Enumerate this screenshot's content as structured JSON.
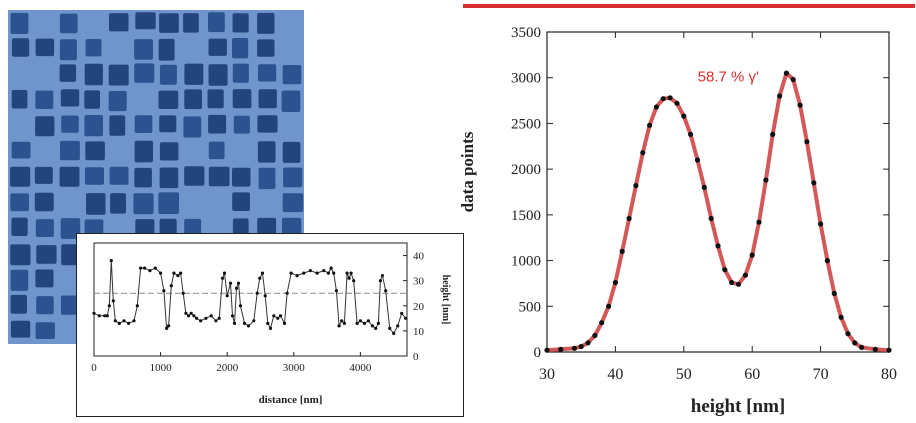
{
  "afm_image": {
    "icon": "afm-microstructure-image"
  },
  "chart_data": [
    {
      "type": "line",
      "xlabel": "distance [nm]",
      "ylabel": "height [nm]",
      "xlim": [
        0,
        4700
      ],
      "ylim": [
        0,
        45
      ],
      "x_ticks": [
        0,
        1000,
        2000,
        3000,
        4000
      ],
      "y_ticks": [
        0,
        10,
        20,
        30,
        40
      ],
      "reference_line": 25,
      "series": [
        {
          "x": [
            0,
            80,
            160,
            200,
            230,
            260,
            290,
            320,
            380,
            450,
            520,
            600,
            650,
            700,
            760,
            840,
            920,
            1000,
            1050,
            1090,
            1120,
            1160,
            1200,
            1260,
            1300,
            1340,
            1380,
            1420,
            1460,
            1500,
            1540,
            1600,
            1680,
            1760,
            1830,
            1880,
            1930,
            1960,
            2000,
            2050,
            2080,
            2110,
            2140,
            2170,
            2200,
            2260,
            2320,
            2400,
            2450,
            2490,
            2530,
            2570,
            2610,
            2650,
            2700,
            2760,
            2800,
            2860,
            2900,
            2960,
            3050,
            3150,
            3250,
            3350,
            3450,
            3520,
            3560,
            3600,
            3640,
            3680,
            3720,
            3760,
            3800,
            3830,
            3860,
            3900,
            3950,
            4000,
            4060,
            4120,
            4180,
            4230,
            4270,
            4300,
            4330,
            4380,
            4440,
            4500,
            4560,
            4620,
            4680
          ],
          "y": [
            17,
            16,
            16,
            16,
            20,
            38,
            22,
            14,
            13,
            14,
            13,
            14,
            20,
            35,
            35,
            34,
            35,
            33,
            26,
            11,
            12,
            28,
            33,
            32,
            33,
            25,
            17,
            16,
            17,
            16,
            15,
            14,
            15,
            16,
            14,
            15,
            31,
            33,
            24,
            29,
            16,
            13,
            27,
            29,
            20,
            13,
            12,
            14,
            25,
            31,
            33,
            24,
            13,
            11,
            16,
            15,
            16,
            13,
            25,
            33,
            32,
            33,
            34,
            33,
            34,
            33,
            35,
            33,
            26,
            12,
            14,
            13,
            33,
            31,
            33,
            30,
            13,
            14,
            13,
            14,
            12,
            11,
            13,
            30,
            32,
            26,
            11,
            9,
            12,
            17,
            15
          ]
        }
      ]
    },
    {
      "type": "scatter",
      "xlabel": "height [nm]",
      "ylabel": "data points",
      "xlim": [
        30,
        80
      ],
      "ylim": [
        0,
        3500
      ],
      "x_ticks": [
        30,
        40,
        50,
        60,
        70,
        80
      ],
      "y_ticks": [
        0,
        500,
        1000,
        1500,
        2000,
        2500,
        3000,
        3500
      ],
      "annotation": "58.7 % γ'",
      "colors": {
        "fit": "#cc3b3b",
        "points": "#111111",
        "accent_bar": "#d9302f",
        "annotation": "#d9302f"
      },
      "series": [
        {
          "x": [
            30,
            32,
            34,
            35,
            36,
            37,
            38,
            39,
            40,
            41,
            42,
            43,
            44,
            45,
            46,
            47,
            48,
            49,
            50,
            51,
            52,
            53,
            54,
            55,
            56,
            57,
            58,
            59,
            60,
            61,
            62,
            63,
            64,
            65,
            66,
            67,
            68,
            69,
            70,
            71,
            72,
            73,
            74,
            75,
            76,
            78,
            80
          ],
          "y": [
            20,
            30,
            40,
            60,
            100,
            180,
            320,
            500,
            760,
            1100,
            1460,
            1820,
            2180,
            2480,
            2680,
            2770,
            2780,
            2720,
            2580,
            2380,
            2100,
            1800,
            1460,
            1160,
            900,
            760,
            740,
            840,
            1060,
            1420,
            1880,
            2380,
            2800,
            3050,
            2980,
            2700,
            2300,
            1850,
            1400,
            1000,
            640,
            380,
            200,
            100,
            50,
            30,
            20
          ]
        }
      ]
    }
  ]
}
